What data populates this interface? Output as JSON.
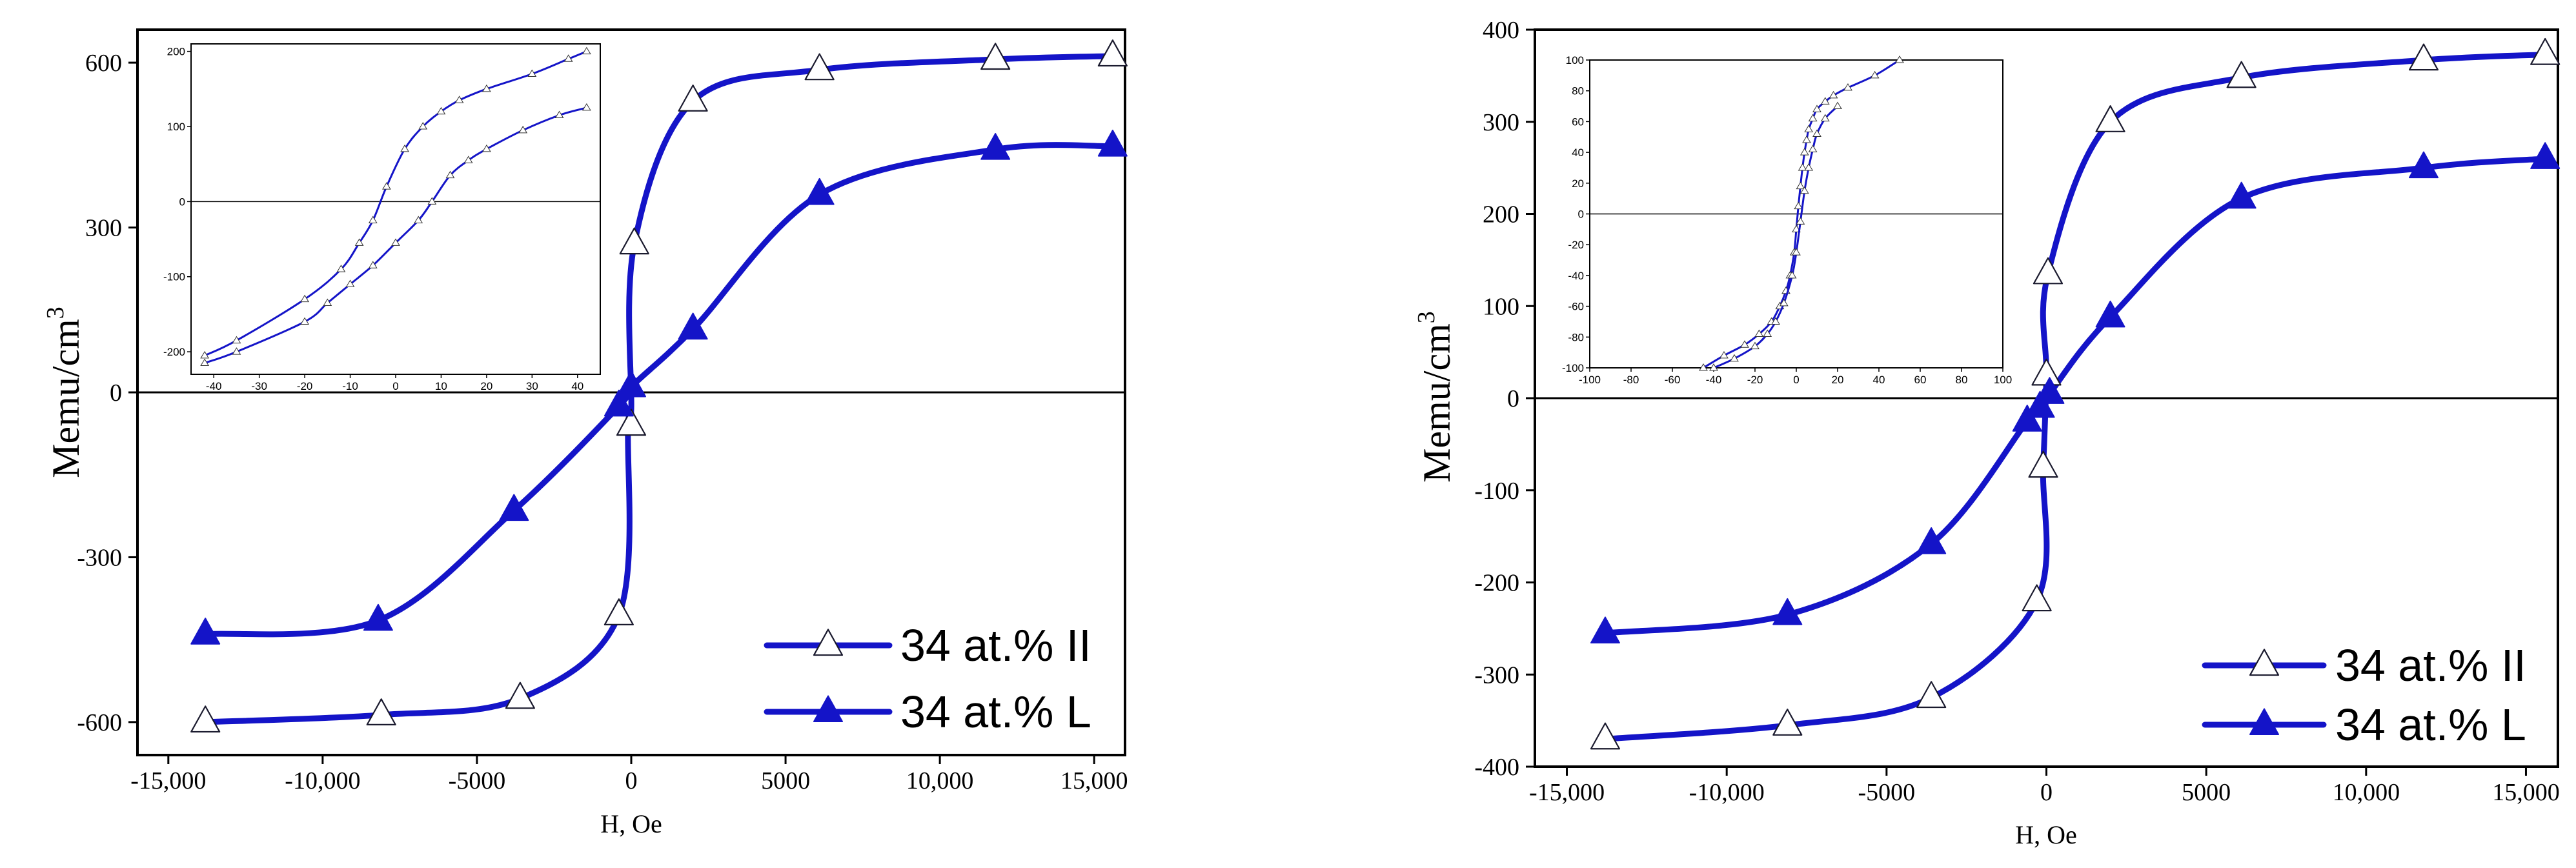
{
  "colors": {
    "series": "#1414c8",
    "axis": "#000000",
    "background": "#ffffff"
  },
  "chart_data": [
    {
      "type": "line",
      "title": "",
      "xlabel": "H, Oe",
      "ylabel": "Memu/cm",
      "ylabel_sup": "3",
      "xlim": [
        -16000,
        16000
      ],
      "ylim": [
        -660,
        660
      ],
      "xticks": [
        -15000,
        -10000,
        -5000,
        0,
        5000,
        10000,
        15000
      ],
      "xtick_labels": [
        "-15,000",
        "-10,000",
        "-5000",
        "0",
        "5000",
        "10,000",
        "15,000"
      ],
      "yticks": [
        -600,
        -300,
        0,
        300,
        600
      ],
      "ytick_labels": [
        "-600",
        "-300",
        "0",
        "300",
        "600"
      ],
      "series": [
        {
          "name": "34 at.% II",
          "marker": "open-triangle",
          "x": [
            -13800,
            -8100,
            -3600,
            -400,
            -100,
            0,
            100,
            2000,
            6100,
            11800,
            15600
          ],
          "y": [
            -600,
            -587,
            -557,
            -405,
            -60,
            -30,
            270,
            530,
            587,
            606,
            612
          ],
          "marker_x": [
            -13800,
            -8100,
            -3600,
            -400,
            0,
            100,
            2000,
            6100,
            11800,
            15600
          ],
          "marker_y": [
            -600,
            -587,
            -557,
            -405,
            -60,
            270,
            530,
            587,
            606,
            612
          ]
        },
        {
          "name": "34 at.% L",
          "marker": "filled-triangle",
          "x": [
            -13800,
            -8200,
            -3800,
            -400,
            0,
            2000,
            6100,
            11800,
            15600
          ],
          "y": [
            -440,
            -415,
            -215,
            -25,
            10,
            115,
            360,
            442,
            448
          ]
        }
      ],
      "inset": {
        "xlim": [
          -45,
          45
        ],
        "ylim": [
          -230,
          210
        ],
        "xticks": [
          -40,
          -30,
          -20,
          -10,
          0,
          10,
          20,
          30,
          40
        ],
        "xtick_labels": [
          "-40",
          "-30",
          "-20",
          "-10",
          "0",
          "10",
          "20",
          "30",
          "40"
        ],
        "yticks": [
          -200,
          -100,
          0,
          100,
          200
        ],
        "ytick_labels": [
          "-200",
          "-100",
          "0",
          "100",
          "200"
        ],
        "branch_upper": {
          "x": [
            -42,
            -35,
            -20,
            -12,
            -8,
            -5,
            -2,
            2,
            6,
            10,
            14,
            20,
            30,
            38,
            42
          ],
          "y": [
            -205,
            -185,
            -130,
            -90,
            -55,
            -25,
            20,
            70,
            100,
            120,
            135,
            150,
            170,
            190,
            200
          ]
        },
        "branch_lower": {
          "x": [
            -42,
            -35,
            -20,
            -15,
            -10,
            -5,
            0,
            5,
            8,
            12,
            16,
            20,
            28,
            36,
            42
          ],
          "y": [
            -215,
            -200,
            -160,
            -135,
            -110,
            -85,
            -55,
            -25,
            0,
            35,
            55,
            70,
            95,
            115,
            125
          ]
        }
      }
    },
    {
      "type": "line",
      "title": "",
      "xlabel": "H, Oe",
      "ylabel": "Memu/cm",
      "ylabel_sup": "3",
      "xlim": [
        -16000,
        16000
      ],
      "ylim": [
        -400,
        400
      ],
      "xticks": [
        -15000,
        -10000,
        -5000,
        0,
        5000,
        10000,
        15000
      ],
      "xtick_labels": [
        "-15,000",
        "-10,000",
        "-5000",
        "0",
        "5000",
        "10,000",
        "15,000"
      ],
      "yticks": [
        -400,
        -300,
        -200,
        -100,
        0,
        100,
        200,
        300,
        400
      ],
      "ytick_labels": [
        "-400",
        "-300",
        "-200",
        "-100",
        "0",
        "100",
        "200",
        "300",
        "400"
      ],
      "series": [
        {
          "name": "34 at.% II",
          "marker": "open-triangle",
          "x": [
            -13800,
            -8100,
            -3600,
            -300,
            -100,
            0,
            50,
            2000,
            6100,
            11800,
            15600
          ],
          "y": [
            -370,
            -355,
            -325,
            -220,
            -75,
            25,
            135,
            300,
            348,
            367,
            373
          ],
          "marker_x": [
            -13800,
            -8100,
            -3600,
            -300,
            -100,
            0,
            50,
            2000,
            6100,
            11800,
            15600
          ],
          "marker_y": [
            -370,
            -355,
            -325,
            -220,
            -75,
            25,
            135,
            300,
            348,
            367,
            373
          ]
        },
        {
          "name": "34 at.% L",
          "marker": "filled-triangle",
          "x": [
            -13800,
            -8100,
            -3600,
            -600,
            -200,
            100,
            2000,
            6100,
            11800,
            15600
          ],
          "y": [
            -255,
            -235,
            -158,
            -25,
            -10,
            5,
            88,
            217,
            250,
            260
          ]
        }
      ],
      "inset": {
        "xlim": [
          -100,
          100
        ],
        "ylim": [
          -100,
          100
        ],
        "xticks": [
          -100,
          -80,
          -60,
          -40,
          -20,
          0,
          20,
          40,
          60,
          80,
          100
        ],
        "xtick_labels": [
          "-100",
          "-80",
          "-60",
          "-40",
          "-20",
          "0",
          "20",
          "40",
          "60",
          "80",
          "100"
        ],
        "yticks": [
          -100,
          -80,
          -60,
          -40,
          -20,
          0,
          20,
          40,
          60,
          80,
          100
        ],
        "ytick_labels": [
          "-100",
          "-80",
          "-60",
          "-40",
          "-20",
          "0",
          "20",
          "40",
          "60",
          "80",
          "100"
        ],
        "branch_upper": {
          "x": [
            -45,
            -35,
            -25,
            -18,
            -12,
            -8,
            -5,
            -3,
            -1,
            0,
            1,
            2,
            3,
            4,
            5,
            6,
            8,
            10,
            14,
            18,
            25,
            38,
            50
          ],
          "y": [
            -100,
            -92,
            -85,
            -78,
            -70,
            -60,
            -50,
            -40,
            -25,
            -10,
            5,
            18,
            30,
            40,
            48,
            55,
            62,
            68,
            73,
            77,
            82,
            90,
            100
          ]
        },
        "branch_lower": {
          "x": [
            -40,
            -30,
            -20,
            -14,
            -10,
            -6,
            -2,
            0,
            2,
            4,
            6,
            8,
            10,
            14,
            20
          ],
          "y": [
            -100,
            -94,
            -86,
            -78,
            -70,
            -58,
            -40,
            -25,
            -5,
            15,
            30,
            42,
            52,
            62,
            70
          ]
        }
      }
    }
  ]
}
